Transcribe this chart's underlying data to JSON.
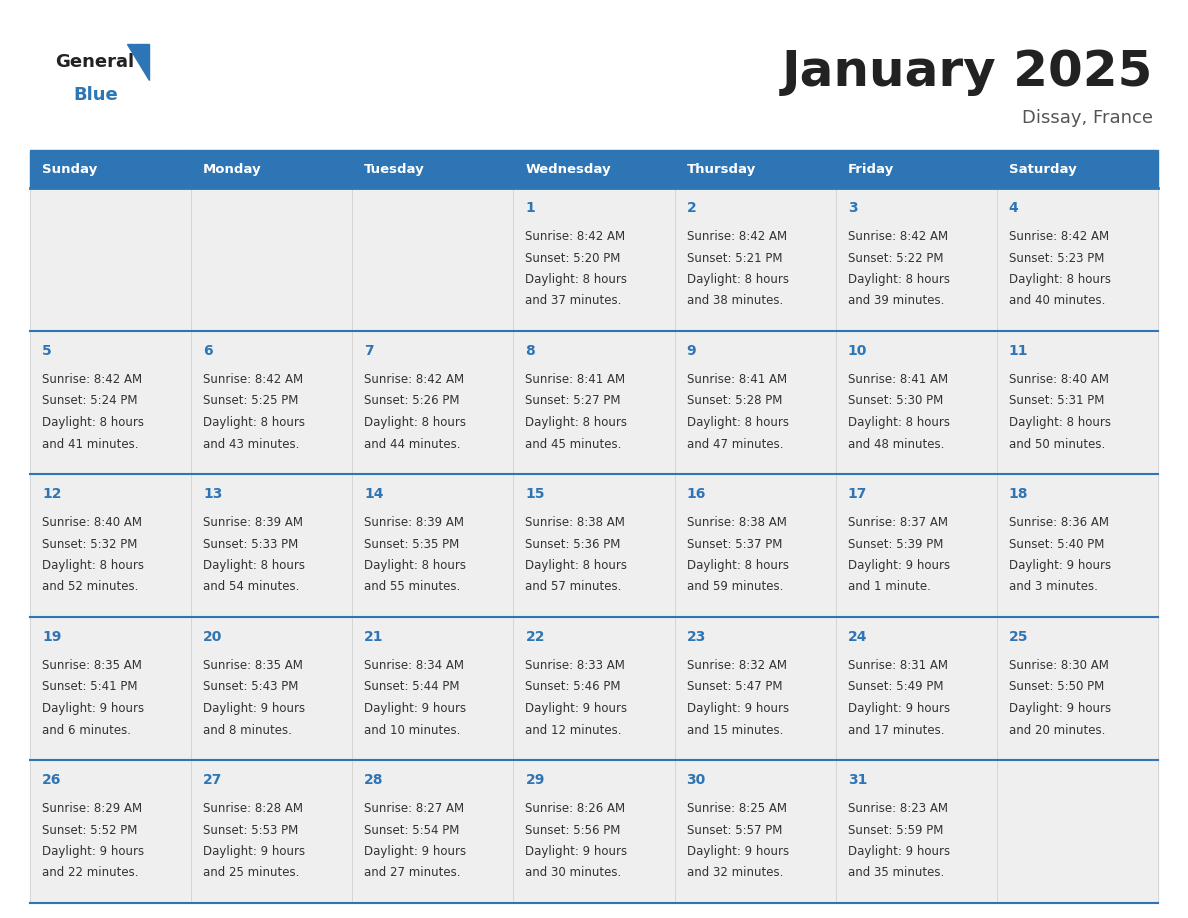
{
  "title": "January 2025",
  "subtitle": "Dissay, France",
  "header_color": "#2E75B6",
  "header_text_color": "#FFFFFF",
  "cell_bg_color": "#EFEFEF",
  "border_color": "#2E75B6",
  "border_color_light": "#2E75B6",
  "day_names": [
    "Sunday",
    "Monday",
    "Tuesday",
    "Wednesday",
    "Thursday",
    "Friday",
    "Saturday"
  ],
  "title_color": "#222222",
  "subtitle_color": "#555555",
  "day_number_color": "#2E75B6",
  "text_color": "#333333",
  "calendar_data": [
    [
      {
        "day": null
      },
      {
        "day": null
      },
      {
        "day": null
      },
      {
        "day": 1,
        "sunrise": "8:42 AM",
        "sunset": "5:20 PM",
        "daylight_hours": 8,
        "daylight_minutes": 37
      },
      {
        "day": 2,
        "sunrise": "8:42 AM",
        "sunset": "5:21 PM",
        "daylight_hours": 8,
        "daylight_minutes": 38
      },
      {
        "day": 3,
        "sunrise": "8:42 AM",
        "sunset": "5:22 PM",
        "daylight_hours": 8,
        "daylight_minutes": 39
      },
      {
        "day": 4,
        "sunrise": "8:42 AM",
        "sunset": "5:23 PM",
        "daylight_hours": 8,
        "daylight_minutes": 40
      }
    ],
    [
      {
        "day": 5,
        "sunrise": "8:42 AM",
        "sunset": "5:24 PM",
        "daylight_hours": 8,
        "daylight_minutes": 41
      },
      {
        "day": 6,
        "sunrise": "8:42 AM",
        "sunset": "5:25 PM",
        "daylight_hours": 8,
        "daylight_minutes": 43
      },
      {
        "day": 7,
        "sunrise": "8:42 AM",
        "sunset": "5:26 PM",
        "daylight_hours": 8,
        "daylight_minutes": 44
      },
      {
        "day": 8,
        "sunrise": "8:41 AM",
        "sunset": "5:27 PM",
        "daylight_hours": 8,
        "daylight_minutes": 45
      },
      {
        "day": 9,
        "sunrise": "8:41 AM",
        "sunset": "5:28 PM",
        "daylight_hours": 8,
        "daylight_minutes": 47
      },
      {
        "day": 10,
        "sunrise": "8:41 AM",
        "sunset": "5:30 PM",
        "daylight_hours": 8,
        "daylight_minutes": 48
      },
      {
        "day": 11,
        "sunrise": "8:40 AM",
        "sunset": "5:31 PM",
        "daylight_hours": 8,
        "daylight_minutes": 50
      }
    ],
    [
      {
        "day": 12,
        "sunrise": "8:40 AM",
        "sunset": "5:32 PM",
        "daylight_hours": 8,
        "daylight_minutes": 52
      },
      {
        "day": 13,
        "sunrise": "8:39 AM",
        "sunset": "5:33 PM",
        "daylight_hours": 8,
        "daylight_minutes": 54
      },
      {
        "day": 14,
        "sunrise": "8:39 AM",
        "sunset": "5:35 PM",
        "daylight_hours": 8,
        "daylight_minutes": 55
      },
      {
        "day": 15,
        "sunrise": "8:38 AM",
        "sunset": "5:36 PM",
        "daylight_hours": 8,
        "daylight_minutes": 57
      },
      {
        "day": 16,
        "sunrise": "8:38 AM",
        "sunset": "5:37 PM",
        "daylight_hours": 8,
        "daylight_minutes": 59
      },
      {
        "day": 17,
        "sunrise": "8:37 AM",
        "sunset": "5:39 PM",
        "daylight_hours": 9,
        "daylight_minutes": 1
      },
      {
        "day": 18,
        "sunrise": "8:36 AM",
        "sunset": "5:40 PM",
        "daylight_hours": 9,
        "daylight_minutes": 3
      }
    ],
    [
      {
        "day": 19,
        "sunrise": "8:35 AM",
        "sunset": "5:41 PM",
        "daylight_hours": 9,
        "daylight_minutes": 6
      },
      {
        "day": 20,
        "sunrise": "8:35 AM",
        "sunset": "5:43 PM",
        "daylight_hours": 9,
        "daylight_minutes": 8
      },
      {
        "day": 21,
        "sunrise": "8:34 AM",
        "sunset": "5:44 PM",
        "daylight_hours": 9,
        "daylight_minutes": 10
      },
      {
        "day": 22,
        "sunrise": "8:33 AM",
        "sunset": "5:46 PM",
        "daylight_hours": 9,
        "daylight_minutes": 12
      },
      {
        "day": 23,
        "sunrise": "8:32 AM",
        "sunset": "5:47 PM",
        "daylight_hours": 9,
        "daylight_minutes": 15
      },
      {
        "day": 24,
        "sunrise": "8:31 AM",
        "sunset": "5:49 PM",
        "daylight_hours": 9,
        "daylight_minutes": 17
      },
      {
        "day": 25,
        "sunrise": "8:30 AM",
        "sunset": "5:50 PM",
        "daylight_hours": 9,
        "daylight_minutes": 20
      }
    ],
    [
      {
        "day": 26,
        "sunrise": "8:29 AM",
        "sunset": "5:52 PM",
        "daylight_hours": 9,
        "daylight_minutes": 22
      },
      {
        "day": 27,
        "sunrise": "8:28 AM",
        "sunset": "5:53 PM",
        "daylight_hours": 9,
        "daylight_minutes": 25
      },
      {
        "day": 28,
        "sunrise": "8:27 AM",
        "sunset": "5:54 PM",
        "daylight_hours": 9,
        "daylight_minutes": 27
      },
      {
        "day": 29,
        "sunrise": "8:26 AM",
        "sunset": "5:56 PM",
        "daylight_hours": 9,
        "daylight_minutes": 30
      },
      {
        "day": 30,
        "sunrise": "8:25 AM",
        "sunset": "5:57 PM",
        "daylight_hours": 9,
        "daylight_minutes": 32
      },
      {
        "day": 31,
        "sunrise": "8:23 AM",
        "sunset": "5:59 PM",
        "daylight_hours": 9,
        "daylight_minutes": 35
      },
      {
        "day": null
      }
    ]
  ],
  "logo_general_color": "#222222",
  "logo_blue_color": "#2E75B6",
  "figwidth": 11.88,
  "figheight": 9.18,
  "dpi": 100
}
